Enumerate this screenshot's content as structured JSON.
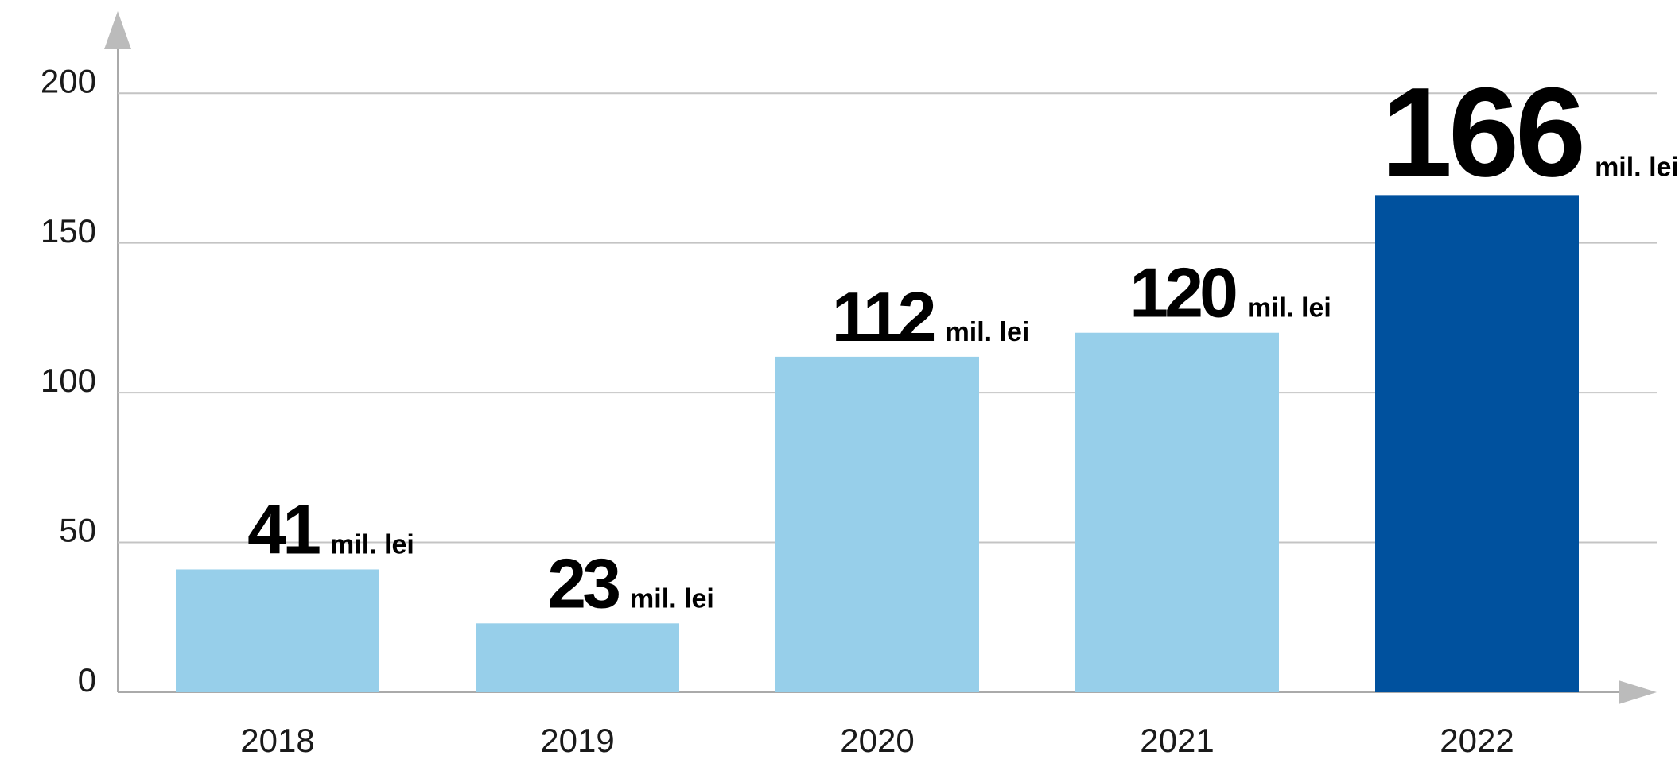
{
  "chart_data": {
    "type": "bar",
    "categories": [
      "2018",
      "2019",
      "2020",
      "2021",
      "2022"
    ],
    "values": [
      41,
      23,
      112,
      120,
      166
    ],
    "unit": "mil. lei",
    "colors": [
      "#97cfea",
      "#97cfea",
      "#97cfea",
      "#97cfea",
      "#00519e"
    ],
    "ylim": [
      0,
      225
    ],
    "yticks": [
      0,
      50,
      100,
      150,
      200
    ],
    "grid": true
  }
}
